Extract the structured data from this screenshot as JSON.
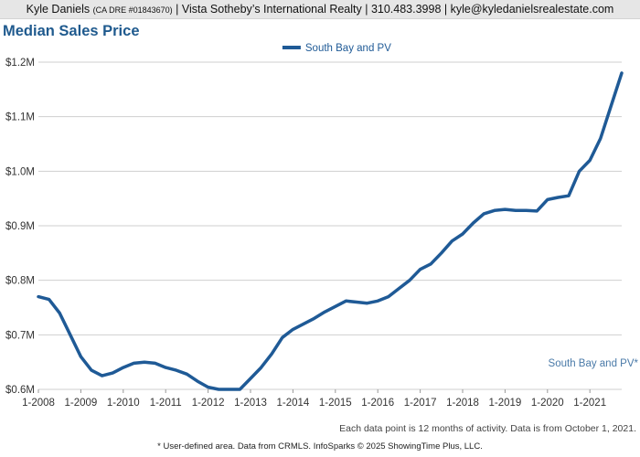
{
  "header": {
    "name": "Kyle Daniels",
    "dre": "(CA DRE #01843670)",
    "rest": "| Vista Sotheby’s International Realty | 310.483.3998 | kyle@kyledanielsrealestate.com"
  },
  "colors": {
    "series": "#1f5a96",
    "grid": "#cfcfcf",
    "axis_text": "#333333",
    "title": "#1f5a8e"
  },
  "chart_data": {
    "type": "line",
    "title": "Median Sales Price",
    "legend_position": "top-center",
    "grid": true,
    "xlim": [
      2008.0,
      2021.75
    ],
    "ylim": [
      600000,
      1200000
    ],
    "x_ticks": [
      2008,
      2009,
      2010,
      2011,
      2012,
      2013,
      2014,
      2015,
      2016,
      2017,
      2018,
      2019,
      2020,
      2021
    ],
    "x_tick_labels": [
      "1-2008",
      "1-2009",
      "1-2010",
      "1-2011",
      "1-2012",
      "1-2013",
      "1-2014",
      "1-2015",
      "1-2016",
      "1-2017",
      "1-2018",
      "1-2019",
      "1-2020",
      "1-2021"
    ],
    "y_ticks": [
      600000,
      700000,
      800000,
      900000,
      1000000,
      1100000,
      1200000
    ],
    "y_tick_labels": [
      "$0.6M",
      "$0.7M",
      "$0.8M",
      "$0.9M",
      "$1.0M",
      "$1.1M",
      "$1.2M"
    ],
    "series_end_label": "South Bay and PV*",
    "series": [
      {
        "name": "South Bay and PV",
        "color": "#1f5a96",
        "x": [
          2008.0,
          2008.25,
          2008.5,
          2008.75,
          2009.0,
          2009.25,
          2009.5,
          2009.75,
          2010.0,
          2010.25,
          2010.5,
          2010.75,
          2011.0,
          2011.25,
          2011.5,
          2011.75,
          2012.0,
          2012.25,
          2012.5,
          2012.75,
          2013.0,
          2013.25,
          2013.5,
          2013.75,
          2014.0,
          2014.25,
          2014.5,
          2014.75,
          2015.0,
          2015.25,
          2015.5,
          2015.75,
          2016.0,
          2016.25,
          2016.5,
          2016.75,
          2017.0,
          2017.25,
          2017.5,
          2017.75,
          2018.0,
          2018.25,
          2018.5,
          2018.75,
          2019.0,
          2019.25,
          2019.5,
          2019.75,
          2020.0,
          2020.25,
          2020.5,
          2020.75,
          2021.0,
          2021.25,
          2021.5,
          2021.75
        ],
        "values": [
          770000,
          765000,
          740000,
          700000,
          660000,
          635000,
          625000,
          630000,
          640000,
          648000,
          650000,
          648000,
          640000,
          635000,
          628000,
          615000,
          604000,
          600000,
          600000,
          600000,
          620000,
          640000,
          665000,
          695000,
          710000,
          720000,
          730000,
          742000,
          752000,
          762000,
          760000,
          758000,
          762000,
          770000,
          785000,
          800000,
          820000,
          830000,
          850000,
          872000,
          885000,
          905000,
          922000,
          928000,
          930000,
          928000,
          928000,
          927000,
          948000,
          952000,
          955000,
          1000000,
          1020000,
          1060000,
          1120000,
          1180000
        ]
      }
    ]
  },
  "footer": {
    "note": "Each data point is 12 months of activity. Data is from October 1, 2021.",
    "credit": "* User-defined area. Data from CRMLS. InfoSparks © 2025 ShowingTime Plus, LLC."
  }
}
